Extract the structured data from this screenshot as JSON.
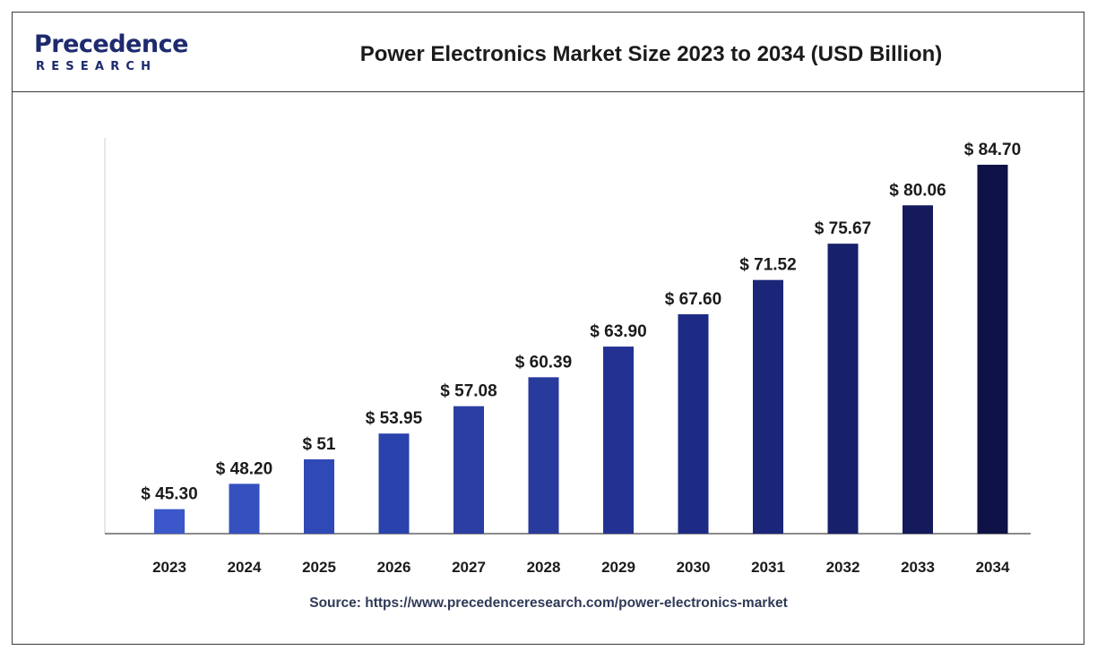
{
  "brand": {
    "name": "Precedence",
    "sub": "RESEARCH",
    "color": "#1e2a6e"
  },
  "header": {
    "title": "Power Electronics Market Size 2023 to 2034 (USD Billion)"
  },
  "footer": {
    "source": "Source: https://www.precedenceresearch.com/power-electronics-market"
  },
  "chart_data": {
    "type": "bar",
    "title": "Power Electronics Market Size 2023 to 2034 (USD Billion)",
    "xlabel": "",
    "ylabel": "",
    "ylim": [
      0,
      84.7
    ],
    "grid": false,
    "categories": [
      "2023",
      "2024",
      "2025",
      "2026",
      "2027",
      "2028",
      "2029",
      "2030",
      "2031",
      "2032",
      "2033",
      "2034"
    ],
    "values": [
      45.3,
      48.2,
      51,
      53.95,
      57.08,
      60.39,
      63.9,
      67.6,
      71.52,
      75.67,
      80.06,
      84.7
    ],
    "labels": [
      "$ 45.30",
      "$ 48.20",
      "$ 51",
      "$ 53.95",
      "$ 57.08",
      "$ 60.39",
      "$ 63.90",
      "$ 67.60",
      "$ 71.52",
      "$ 75.67",
      "$ 80.06",
      "$ 84.70"
    ],
    "colors": [
      "#3b57c9",
      "#3551c0",
      "#2f4ab6",
      "#2a42ab",
      "#2a3ea3",
      "#283a9c",
      "#233292",
      "#1e2b85",
      "#1b2679",
      "#17206b",
      "#141a5c",
      "#0f1247"
    ]
  }
}
